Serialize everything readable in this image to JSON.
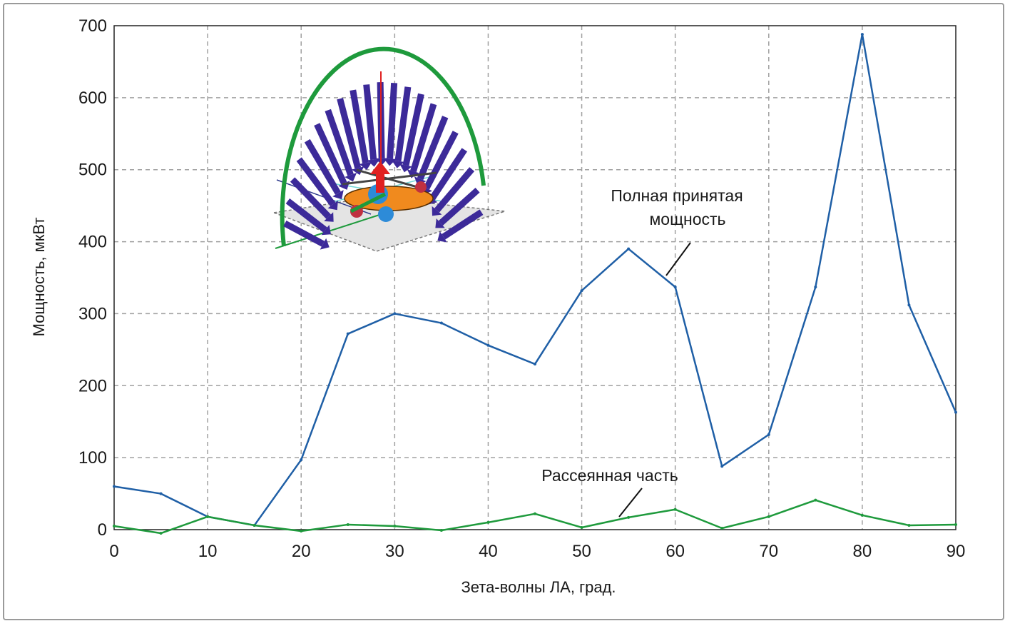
{
  "chart_data": {
    "type": "line",
    "xlabel": "Зета-волны ЛА, град.",
    "ylabel": "Мощность, мкВт",
    "xlim": [
      0,
      90
    ],
    "ylim": [
      0,
      700
    ],
    "x_ticks": [
      0,
      10,
      20,
      30,
      40,
      50,
      60,
      70,
      80,
      90
    ],
    "y_ticks": [
      0,
      100,
      200,
      300,
      400,
      500,
      600,
      700
    ],
    "grid": true,
    "series": [
      {
        "name": "Полная принятая мощность",
        "color": "#1f5fa6",
        "x": [
          0,
          5,
          10,
          15,
          20,
          25,
          30,
          35,
          40,
          45,
          50,
          55,
          60,
          65,
          70,
          75,
          80,
          85,
          90
        ],
        "y": [
          60,
          50,
          18,
          6,
          97,
          272,
          300,
          287,
          256,
          230,
          332,
          390,
          337,
          88,
          132,
          337,
          688,
          312,
          163
        ]
      },
      {
        "name": "Рассеянная часть",
        "color": "#1e9a3c",
        "x": [
          0,
          5,
          10,
          15,
          20,
          25,
          30,
          35,
          40,
          45,
          50,
          55,
          60,
          65,
          70,
          75,
          80,
          85,
          90
        ],
        "y": [
          5,
          -5,
          18,
          6,
          -2,
          7,
          5,
          -1,
          10,
          22,
          3,
          17,
          28,
          2,
          18,
          41,
          20,
          6,
          7
        ]
      }
    ],
    "annotations": [
      {
        "lines": [
          "Полная принятая",
          "мощность"
        ]
      },
      {
        "lines": [
          "Рассеянная часть"
        ]
      }
    ]
  },
  "inset": {
    "icon": "helicopter-radiation-pattern-icon"
  }
}
